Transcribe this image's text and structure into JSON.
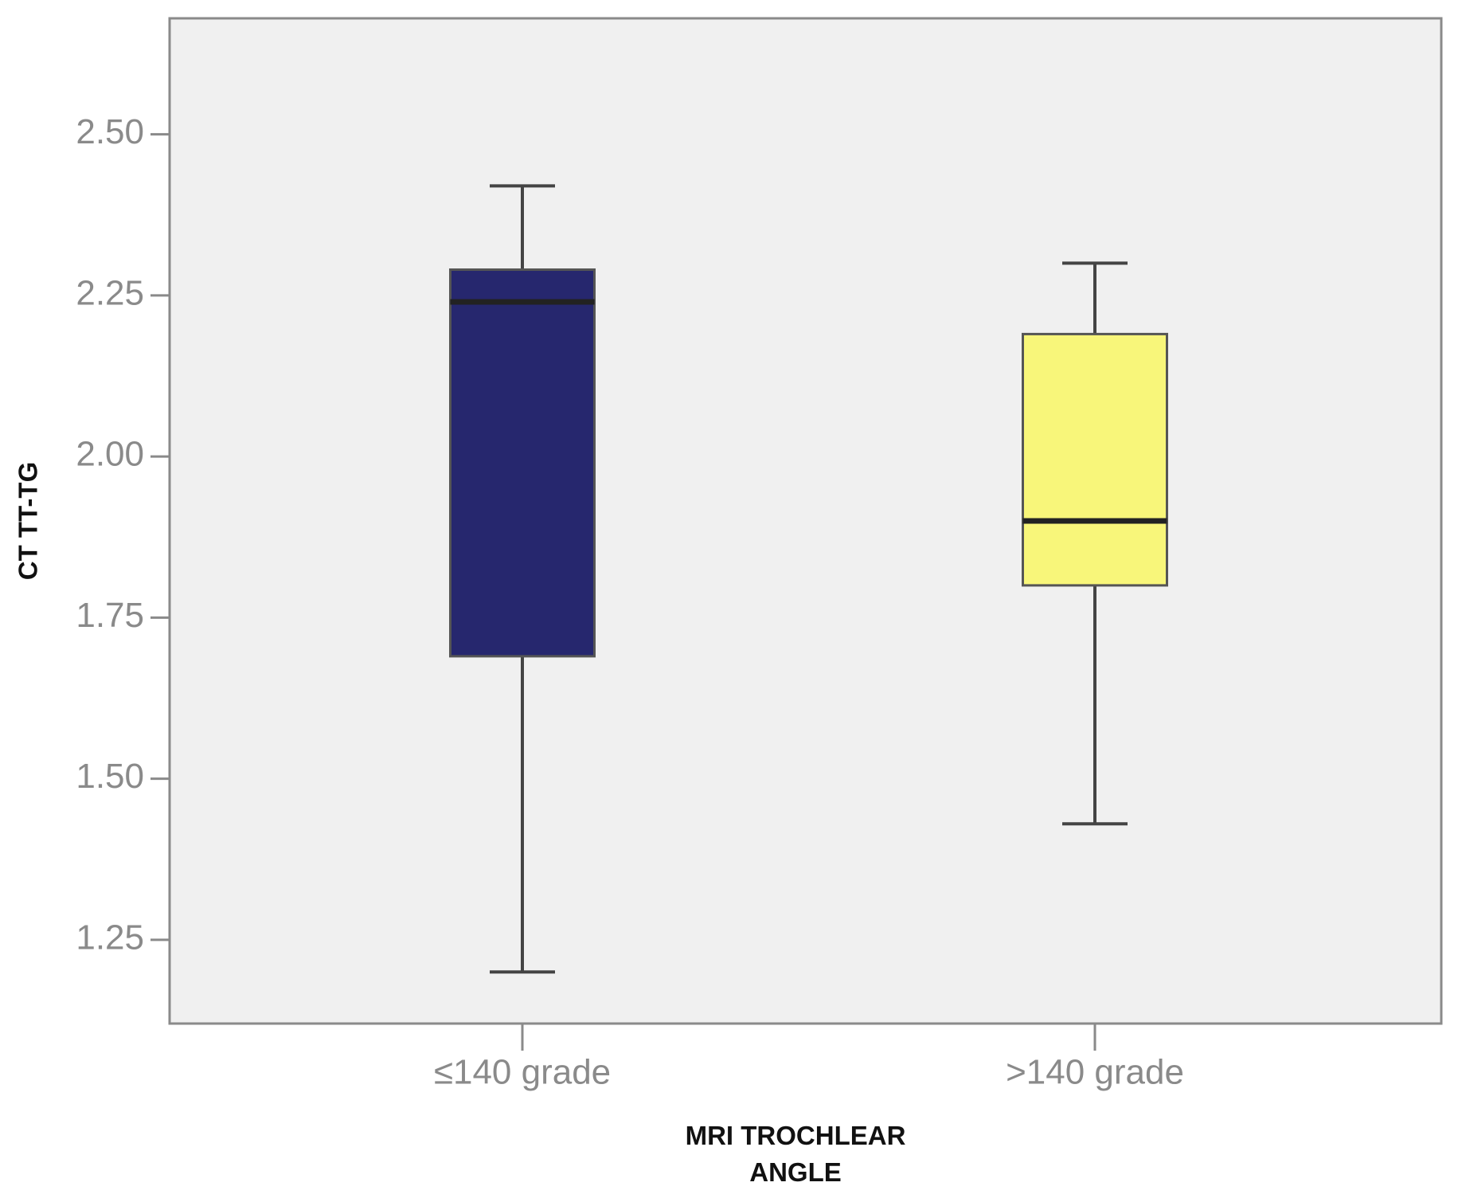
{
  "chart_data": {
    "type": "box",
    "y_label": "CT TT-TG",
    "x_label": "MRI TROCHLEAR ANGLE",
    "categories": [
      "≤140 grade",
      ">140 grade"
    ],
    "boxes": [
      {
        "min": 1.2,
        "q1": 1.69,
        "median": 2.24,
        "q3": 2.29,
        "max": 2.42,
        "color": "#26276e"
      },
      {
        "min": 1.43,
        "q1": 1.8,
        "median": 1.9,
        "q3": 2.19,
        "max": 2.3,
        "color": "#f8f67a"
      }
    ],
    "ylim": [
      1.12,
      2.68
    ],
    "yticks": [
      {
        "value": 1.25,
        "label": "1.25"
      },
      {
        "value": 1.5,
        "label": "1.50"
      },
      {
        "value": 1.75,
        "label": "1.75"
      },
      {
        "value": 2.0,
        "label": "2.00"
      },
      {
        "value": 2.25,
        "label": "2.25"
      },
      {
        "value": 2.5,
        "label": "2.50"
      }
    ]
  }
}
